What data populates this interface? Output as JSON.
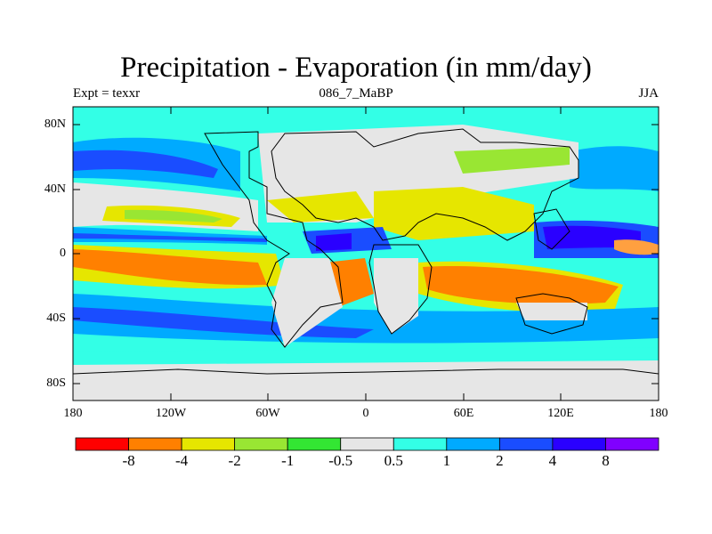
{
  "map": {
    "title": "Precipitation - Evaporation (in mm/day)",
    "subtitle_left": "Expt = texxr",
    "subtitle_center": "086_7_MaBP",
    "subtitle_right": "JJA",
    "lat_ticks": [
      "80N",
      "40N",
      "0",
      "40S",
      "80S"
    ],
    "lon_ticks": [
      "180",
      "120W",
      "60W",
      "0",
      "60E",
      "120E",
      "180"
    ],
    "colorbar": {
      "labels": [
        "-8",
        "-4",
        "-2",
        "-1",
        "-0.5",
        "0.5",
        "1",
        "2",
        "4",
        "8"
      ],
      "colors": [
        "#ff0000",
        "#ff8000",
        "#e6e600",
        "#99e633",
        "#33e633",
        "#e6e6e6",
        "#33ffe6",
        "#00aaff",
        "#1a4dff",
        "#2a00ff",
        "#8000ff"
      ]
    }
  }
}
